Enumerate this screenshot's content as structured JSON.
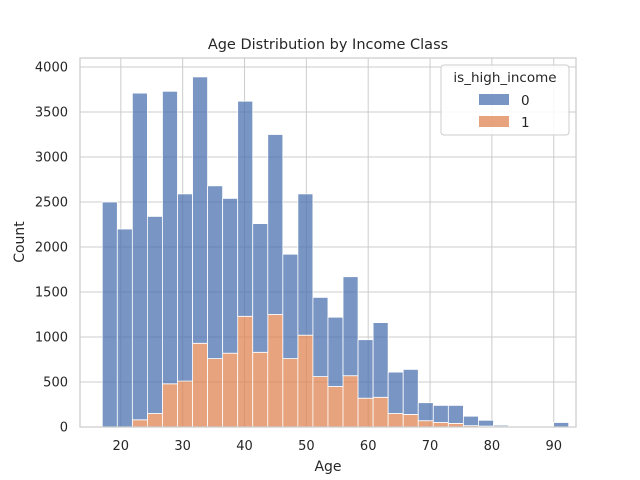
{
  "chart_data": {
    "type": "bar",
    "stacked": true,
    "histogram": true,
    "title": "Age Distribution by Income Class",
    "xlabel": "Age",
    "ylabel": "Count",
    "xlim": [
      13.4,
      93.6
    ],
    "ylim": [
      0,
      4100
    ],
    "grid": true,
    "x_ticks": [
      20,
      30,
      40,
      50,
      60,
      70,
      80,
      90
    ],
    "y_ticks": [
      0,
      500,
      1000,
      1500,
      2000,
      2500,
      3000,
      3500,
      4000
    ],
    "bin_start": 17,
    "bin_width": 2.433,
    "legend": {
      "title": "is_high_income",
      "position": "upper right",
      "entries": [
        {
          "label": "0",
          "color": "#4c72b0"
        },
        {
          "label": "1",
          "color": "#dd8452"
        }
      ]
    },
    "series": [
      {
        "name": "1",
        "color": "#dd8452",
        "values": [
          0,
          0,
          80,
          150,
          480,
          510,
          930,
          760,
          820,
          1230,
          830,
          1250,
          760,
          1020,
          560,
          450,
          570,
          320,
          330,
          150,
          140,
          70,
          50,
          40,
          15,
          10,
          5,
          0,
          5,
          0,
          0,
          0,
          0
        ]
      },
      {
        "name": "0",
        "color": "#4c72b0",
        "values": [
          2500,
          2200,
          3630,
          2190,
          3250,
          2080,
          2960,
          1920,
          1720,
          2390,
          1430,
          2000,
          1160,
          1570,
          880,
          770,
          1100,
          650,
          830,
          460,
          500,
          200,
          190,
          200,
          105,
          65,
          15,
          5,
          0,
          0,
          50,
          0,
          0
        ]
      }
    ]
  }
}
